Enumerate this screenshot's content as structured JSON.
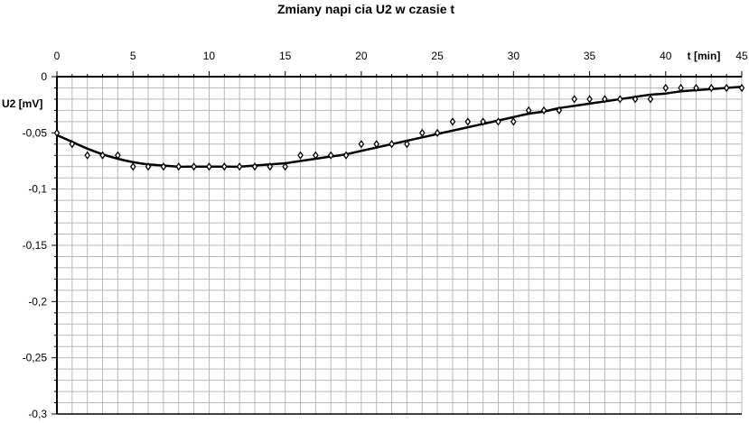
{
  "chart_data": {
    "type": "scatter",
    "title": "Zmiany napi   cia U2 w czasie t",
    "xlabel": "t [min]",
    "ylabel": "U2 [mV]",
    "xlim": [
      0,
      45
    ],
    "ylim": [
      -0.3,
      0
    ],
    "x_ticks": [
      "0",
      "5",
      "10",
      "15",
      "20",
      "25",
      "30",
      "35",
      "40",
      "45"
    ],
    "y_ticks": [
      "0",
      "-0,05",
      "-0,1",
      "-0,15",
      "-0,2",
      "-0,25",
      "-0,3"
    ],
    "grid": true,
    "x_axis_position": "top",
    "series": [
      {
        "kind": "markers",
        "x": [
          0,
          1,
          2,
          3,
          4,
          5,
          6,
          7,
          8,
          9,
          10,
          11,
          12,
          13,
          14,
          15,
          16,
          17,
          18,
          19,
          20,
          21,
          22,
          23,
          24,
          25,
          26,
          27,
          28,
          29,
          30,
          31,
          32,
          33,
          34,
          35,
          36,
          37,
          38,
          39,
          40,
          41,
          42,
          43,
          44,
          45
        ],
        "y": [
          -0.05,
          -0.06,
          -0.07,
          -0.07,
          -0.07,
          -0.08,
          -0.08,
          -0.08,
          -0.08,
          -0.08,
          -0.08,
          -0.08,
          -0.08,
          -0.08,
          -0.08,
          -0.08,
          -0.07,
          -0.07,
          -0.07,
          -0.07,
          -0.06,
          -0.06,
          -0.06,
          -0.06,
          -0.05,
          -0.05,
          -0.04,
          -0.04,
          -0.04,
          -0.04,
          -0.04,
          -0.03,
          -0.03,
          -0.03,
          -0.02,
          -0.02,
          -0.02,
          -0.02,
          -0.02,
          -0.02,
          -0.01,
          -0.01,
          -0.01,
          -0.01,
          -0.01,
          -0.01
        ]
      },
      {
        "kind": "trendline",
        "x": [
          0,
          1,
          2,
          3,
          4,
          5,
          6,
          7,
          8,
          9,
          10,
          11,
          12,
          13,
          14,
          15,
          16,
          17,
          18,
          19,
          20,
          21,
          22,
          23,
          24,
          25,
          26,
          27,
          28,
          29,
          30,
          31,
          32,
          33,
          34,
          35,
          36,
          37,
          38,
          39,
          40,
          41,
          42,
          43,
          44,
          45
        ],
        "y": [
          -0.052,
          -0.058,
          -0.064,
          -0.069,
          -0.073,
          -0.076,
          -0.078,
          -0.079,
          -0.08,
          -0.08,
          -0.08,
          -0.08,
          -0.08,
          -0.079,
          -0.078,
          -0.077,
          -0.075,
          -0.073,
          -0.071,
          -0.069,
          -0.066,
          -0.063,
          -0.06,
          -0.057,
          -0.054,
          -0.051,
          -0.048,
          -0.045,
          -0.042,
          -0.039,
          -0.036,
          -0.033,
          -0.031,
          -0.028,
          -0.026,
          -0.024,
          -0.022,
          -0.02,
          -0.018,
          -0.016,
          -0.015,
          -0.013,
          -0.012,
          -0.011,
          -0.01,
          -0.009
        ]
      }
    ]
  }
}
